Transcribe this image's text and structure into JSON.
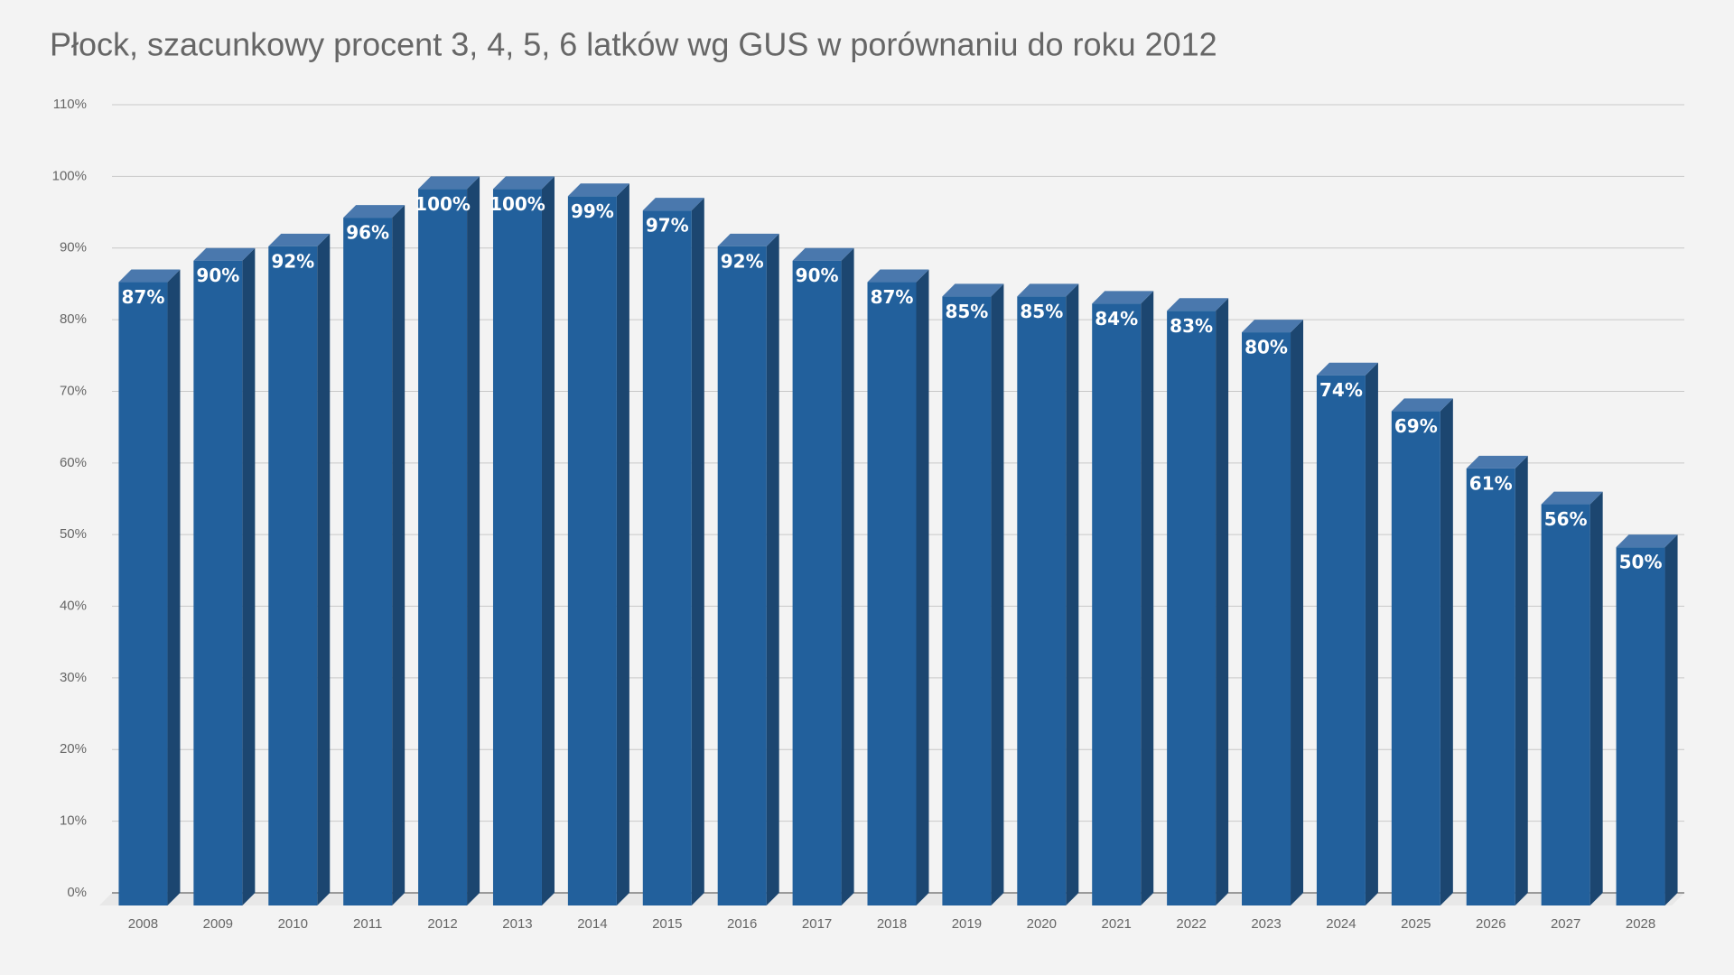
{
  "chart_data": {
    "type": "bar3d",
    "title": "Płock, szacunkowy procent 3, 4, 5, 6 latków wg GUS w porównaniu do roku 2012",
    "categories": [
      "2008",
      "2009",
      "2010",
      "2011",
      "2012",
      "2013",
      "2014",
      "2015",
      "2016",
      "2017",
      "2018",
      "2019",
      "2020",
      "2021",
      "2022",
      "2023",
      "2024",
      "2025",
      "2026",
      "2027",
      "2028"
    ],
    "values": [
      87,
      90,
      92,
      96,
      100,
      100,
      99,
      97,
      92,
      90,
      87,
      85,
      85,
      84,
      83,
      80,
      74,
      69,
      61,
      56,
      50
    ],
    "value_labels": [
      "87%",
      "90%",
      "92%",
      "96%",
      "100%",
      "100%",
      "99%",
      "97%",
      "92%",
      "90%",
      "87%",
      "85%",
      "85%",
      "84%",
      "83%",
      "80%",
      "74%",
      "69%",
      "61%",
      "56%",
      "50%"
    ],
    "color": "#22609c",
    "ylim": [
      0,
      110
    ],
    "yticks": [
      {
        "value": 0,
        "label": "0%"
      },
      {
        "value": 10,
        "label": "10%"
      },
      {
        "value": 20,
        "label": "20%"
      },
      {
        "value": 30,
        "label": "30%"
      },
      {
        "value": 40,
        "label": "40%"
      },
      {
        "value": 50,
        "label": "50%"
      },
      {
        "value": 60,
        "label": "60%"
      },
      {
        "value": 70,
        "label": "70%"
      },
      {
        "value": 80,
        "label": "80%"
      },
      {
        "value": 90,
        "label": "90%"
      },
      {
        "value": 100,
        "label": "100%"
      },
      {
        "value": 110,
        "label": "110%"
      }
    ],
    "grid": true
  }
}
